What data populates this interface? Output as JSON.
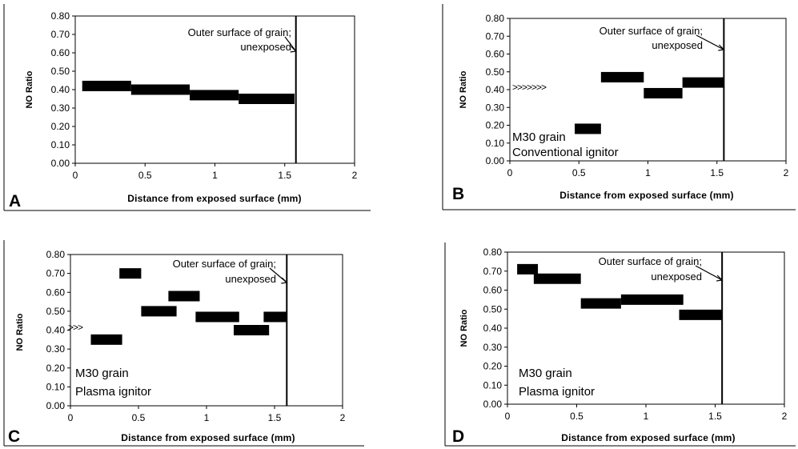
{
  "figure": {
    "panels": [
      {
        "id": "A",
        "panel_label": "A",
        "ylabel": "NO Ratio",
        "xlabel": "Distance from exposed surface (mm)",
        "yticks": [
          "0.00",
          "0.10",
          "0.20",
          "0.30",
          "0.40",
          "0.50",
          "0.60",
          "0.70",
          "0.80"
        ],
        "xticks": [
          "0",
          "0.5",
          "1",
          "1.5",
          "2"
        ],
        "annotation_line1": "Outer surface of grain;",
        "annotation_line2": "unexposed",
        "inset_line1": "",
        "inset_line2": "",
        "arrow_text": ""
      },
      {
        "id": "B",
        "panel_label": "B",
        "ylabel": "NO Ratio",
        "xlabel": "Distance from exposed surface (mm)",
        "yticks": [
          "0.00",
          "0.10",
          "0.20",
          "0.30",
          "0.40",
          "0.50",
          "0.60",
          "0.70",
          "0.80"
        ],
        "xticks": [
          "0",
          "0.5",
          "1",
          "1.5",
          "2"
        ],
        "annotation_line1": "Outer surface of grain;",
        "annotation_line2": "unexposed",
        "inset_line1": "M30 grain",
        "inset_line2": "Conventional ignitor",
        "arrow_text": ">>>>>>>"
      },
      {
        "id": "C",
        "panel_label": "C",
        "ylabel": "NO Ratio",
        "xlabel": "Distance from exposed surface (mm)",
        "yticks": [
          "0.00",
          "0.10",
          "0.20",
          "0.30",
          "0.40",
          "0.50",
          "0.60",
          "0.70",
          "0.80"
        ],
        "xticks": [
          "0",
          "0.5",
          "1",
          "1.5",
          "2"
        ],
        "annotation_line1": "Outer surface of grain;",
        "annotation_line2": "unexposed",
        "inset_line1": "M30 grain",
        "inset_line2": "Plasma ignitor",
        "arrow_text": ">>>"
      },
      {
        "id": "D",
        "panel_label": "D",
        "ylabel": "NO Ratio",
        "xlabel": "Distance from exposed surface (mm)",
        "yticks": [
          "0.00",
          "0.10",
          "0.20",
          "0.30",
          "0.40",
          "0.50",
          "0.60",
          "0.70",
          "0.80"
        ],
        "xticks": [
          "0",
          "0.5",
          "1",
          "1.5",
          "2"
        ],
        "annotation_line1": "Outer surface of grain;",
        "annotation_line2": "unexposed",
        "inset_line1": "M30 grain",
        "inset_line2": "Plasma ignitor",
        "arrow_text": ""
      }
    ]
  },
  "chart_data": [
    {
      "type": "bar",
      "panel": "A",
      "xlabel": "Distance from exposed surface (mm)",
      "ylabel": "NO Ratio",
      "xlim": [
        0,
        2
      ],
      "ylim": [
        0,
        0.8
      ],
      "grid": false,
      "segments": [
        {
          "x_start": 0.05,
          "x_end": 0.4,
          "y": 0.42
        },
        {
          "x_start": 0.4,
          "x_end": 0.82,
          "y": 0.4
        },
        {
          "x_start": 0.82,
          "x_end": 1.17,
          "y": 0.37
        },
        {
          "x_start": 1.17,
          "x_end": 1.57,
          "y": 0.35
        }
      ],
      "surface_line_x": 1.58
    },
    {
      "type": "bar",
      "panel": "B",
      "xlabel": "Distance from exposed surface (mm)",
      "ylabel": "NO Ratio",
      "xlim": [
        0,
        2
      ],
      "ylim": [
        0,
        0.8
      ],
      "grid": false,
      "segments": [
        {
          "x_start": 0.47,
          "x_end": 0.66,
          "y": 0.18
        },
        {
          "x_start": 0.66,
          "x_end": 0.97,
          "y": 0.47
        },
        {
          "x_start": 0.97,
          "x_end": 1.25,
          "y": 0.38
        },
        {
          "x_start": 1.25,
          "x_end": 1.55,
          "y": 0.44
        }
      ],
      "surface_line_x": 1.55
    },
    {
      "type": "bar",
      "panel": "C",
      "xlabel": "Distance from exposed surface (mm)",
      "ylabel": "NO Ratio",
      "xlim": [
        0,
        2
      ],
      "ylim": [
        0,
        0.8
      ],
      "grid": false,
      "segments": [
        {
          "x_start": 0.15,
          "x_end": 0.38,
          "y": 0.35
        },
        {
          "x_start": 0.36,
          "x_end": 0.52,
          "y": 0.7
        },
        {
          "x_start": 0.52,
          "x_end": 0.78,
          "y": 0.5
        },
        {
          "x_start": 0.72,
          "x_end": 0.95,
          "y": 0.58
        },
        {
          "x_start": 0.92,
          "x_end": 1.24,
          "y": 0.47
        },
        {
          "x_start": 1.2,
          "x_end": 1.46,
          "y": 0.4
        },
        {
          "x_start": 1.42,
          "x_end": 1.59,
          "y": 0.47
        }
      ],
      "surface_line_x": 1.59
    },
    {
      "type": "bar",
      "panel": "D",
      "xlabel": "Distance from exposed surface (mm)",
      "ylabel": "NO Ratio",
      "xlim": [
        0,
        2
      ],
      "ylim": [
        0,
        0.8
      ],
      "grid": false,
      "segments": [
        {
          "x_start": 0.07,
          "x_end": 0.22,
          "y": 0.71
        },
        {
          "x_start": 0.19,
          "x_end": 0.53,
          "y": 0.66
        },
        {
          "x_start": 0.53,
          "x_end": 0.82,
          "y": 0.53
        },
        {
          "x_start": 0.82,
          "x_end": 1.27,
          "y": 0.55
        },
        {
          "x_start": 1.24,
          "x_end": 1.55,
          "y": 0.47
        }
      ],
      "surface_line_x": 1.55
    }
  ]
}
